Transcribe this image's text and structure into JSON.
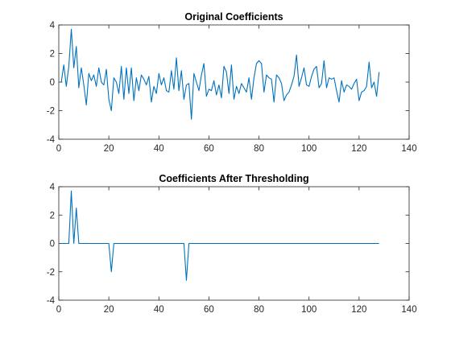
{
  "colors": {
    "series": "#0072BD",
    "axis": "#262626",
    "background": "#ffffff"
  },
  "chart_data": [
    {
      "type": "line",
      "title": "Original Coefficients",
      "xlabel": "",
      "ylabel": "",
      "xlim": [
        0,
        140
      ],
      "ylim": [
        -4,
        4
      ],
      "xticks": [
        0,
        20,
        40,
        60,
        80,
        100,
        120,
        140
      ],
      "yticks": [
        -4,
        -2,
        0,
        2,
        4
      ],
      "grid": false,
      "series": [
        {
          "x": [
            1,
            2,
            3,
            4,
            5,
            6,
            7,
            8,
            9,
            10,
            11,
            12,
            13,
            14,
            15,
            16,
            17,
            18,
            19,
            20,
            21,
            22,
            23,
            24,
            25,
            26,
            27,
            28,
            29,
            30,
            31,
            32,
            33,
            34,
            35,
            36,
            37,
            38,
            39,
            40,
            41,
            42,
            43,
            44,
            45,
            46,
            47,
            48,
            49,
            50,
            51,
            52,
            53,
            54,
            55,
            56,
            57,
            58,
            59,
            60,
            61,
            62,
            63,
            64,
            65,
            66,
            67,
            68,
            69,
            70,
            71,
            72,
            73,
            74,
            75,
            76,
            77,
            78,
            79,
            80,
            81,
            82,
            83,
            84,
            85,
            86,
            87,
            88,
            89,
            90,
            91,
            92,
            93,
            94,
            95,
            96,
            97,
            98,
            99,
            100,
            101,
            102,
            103,
            104,
            105,
            106,
            107,
            108,
            109,
            110,
            111,
            112,
            113,
            114,
            115,
            116,
            117,
            118,
            119,
            120,
            121,
            122,
            123,
            124,
            125,
            126,
            127,
            128
          ],
          "values": [
            0.0,
            1.2,
            -0.3,
            1.1,
            3.7,
            1.0,
            2.5,
            -0.4,
            1.0,
            -0.2,
            -1.6,
            0.6,
            0.1,
            0.5,
            -0.3,
            1.0,
            0.0,
            -0.2,
            0.9,
            -1.2,
            -2.0,
            0.3,
            0.0,
            -0.8,
            1.1,
            -1.2,
            1.0,
            -0.8,
            1.0,
            -1.3,
            0.3,
            -0.6,
            0.5,
            0.2,
            -0.2,
            0.4,
            -1.4,
            -0.3,
            -0.8,
            0.6,
            -0.2,
            0.3,
            -0.6,
            -0.7,
            0.8,
            -0.5,
            1.7,
            -0.6,
            0.8,
            -1.2,
            -0.2,
            -0.1,
            -2.6,
            0.6,
            0.0,
            -0.6,
            0.5,
            1.3,
            -1.0,
            -0.5,
            -0.6,
            0.1,
            -0.9,
            -0.2,
            -1.1,
            1.1,
            0.7,
            -0.8,
            1.2,
            -1.2,
            -0.3,
            -0.8,
            -0.1,
            -0.4,
            -0.7,
            0.3,
            -1.2,
            0.3,
            1.3,
            1.5,
            1.3,
            -0.7,
            0.5,
            0.3,
            0.2,
            -1.4,
            0.5,
            0.3,
            -0.1,
            -1.3,
            -0.9,
            -0.7,
            -0.2,
            0.4,
            1.9,
            -0.3,
            0.3,
            1.0,
            -0.2,
            -0.3,
            0.4,
            0.9,
            1.1,
            -0.4,
            -0.1,
            1.5,
            -0.4,
            0.3,
            0.2,
            0.3,
            -0.6,
            -1.4,
            0.1,
            -0.7,
            -0.2,
            -0.3,
            -0.5,
            -0.1,
            0.2,
            -1.3,
            -0.7,
            -0.6,
            -0.3,
            1.4,
            -0.4,
            0.0,
            -1.0,
            0.7
          ]
        }
      ]
    },
    {
      "type": "line",
      "title": "Coefficients After Thresholding",
      "xlabel": "",
      "ylabel": "",
      "xlim": [
        0,
        140
      ],
      "ylim": [
        -4,
        4
      ],
      "xticks": [
        0,
        20,
        40,
        60,
        80,
        100,
        120,
        140
      ],
      "yticks": [
        -4,
        -2,
        0,
        2,
        4
      ],
      "grid": false,
      "series": [
        {
          "x": [
            1,
            4,
            5,
            6,
            7,
            8,
            20,
            21,
            22,
            50,
            51,
            52,
            128
          ],
          "values": [
            0,
            0,
            3.7,
            0,
            2.5,
            0,
            0,
            -2.0,
            0,
            0,
            -2.6,
            0,
            0
          ]
        }
      ]
    }
  ]
}
